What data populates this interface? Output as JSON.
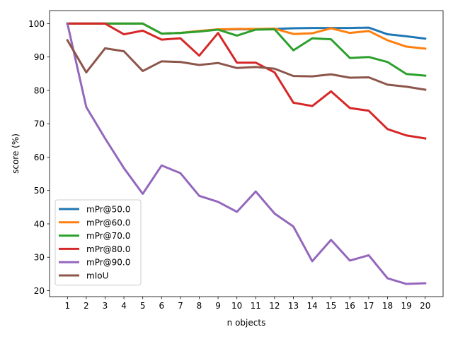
{
  "chart_data": {
    "type": "line",
    "title": "",
    "xlabel": "n objects",
    "ylabel": "score (%)",
    "x": [
      1,
      2,
      3,
      4,
      5,
      6,
      7,
      8,
      9,
      10,
      11,
      12,
      13,
      14,
      15,
      16,
      17,
      18,
      19,
      20
    ],
    "xticks": [
      "1",
      "2",
      "3",
      "4",
      "5",
      "6",
      "7",
      "8",
      "9",
      "10",
      "11",
      "12",
      "13",
      "14",
      "15",
      "16",
      "17",
      "18",
      "19",
      "20"
    ],
    "yticks": [
      "20",
      "30",
      "40",
      "50",
      "60",
      "70",
      "80",
      "90",
      "100"
    ],
    "ylim": [
      18.2,
      103.9
    ],
    "xlim": [
      0.05,
      20.95
    ],
    "grid": false,
    "legend_position": "lower-left",
    "series": [
      {
        "name": "mPr@50.0",
        "color": "#1f77b4",
        "values": [
          100,
          100,
          100,
          100,
          100,
          97.0,
          97.2,
          97.8,
          98.2,
          98.3,
          98.3,
          98.4,
          98.6,
          98.7,
          98.7,
          98.7,
          98.8,
          96.8,
          96.2,
          95.5
        ]
      },
      {
        "name": "mPr@60.0",
        "color": "#ff7f0e",
        "values": [
          100,
          100,
          100,
          100,
          100,
          97.0,
          97.2,
          97.8,
          98.3,
          98.4,
          98.4,
          98.5,
          96.9,
          97.1,
          98.6,
          97.2,
          97.8,
          95.0,
          93.1,
          92.5
        ]
      },
      {
        "name": "mPr@70.0",
        "color": "#2ca02c",
        "values": [
          100,
          100,
          100,
          100,
          100,
          97.0,
          97.2,
          97.6,
          98.2,
          96.4,
          98.2,
          98.3,
          92.0,
          95.6,
          95.3,
          89.7,
          90.0,
          88.5,
          84.9,
          84.4
        ]
      },
      {
        "name": "mPr@80.0",
        "color": "#d62728",
        "values": [
          100,
          100,
          100,
          96.8,
          97.9,
          95.2,
          95.6,
          90.4,
          97.2,
          88.3,
          88.3,
          85.4,
          76.3,
          75.3,
          79.7,
          74.7,
          73.9,
          68.4,
          66.5,
          65.6
        ]
      },
      {
        "name": "mPr@90.0",
        "color": "#9467bd",
        "values": [
          100,
          75.0,
          65.6,
          56.7,
          49.0,
          57.5,
          55.2,
          48.4,
          46.6,
          43.6,
          49.7,
          43.1,
          39.2,
          28.8,
          35.2,
          29.0,
          30.6,
          23.7,
          22.0,
          22.2
        ]
      },
      {
        "name": "mIoU",
        "color": "#8c564b",
        "values": [
          95.0,
          85.4,
          92.6,
          91.7,
          85.8,
          88.7,
          88.5,
          87.6,
          88.2,
          86.7,
          87.0,
          86.5,
          84.3,
          84.2,
          84.8,
          83.8,
          83.9,
          81.7,
          81.1,
          80.2
        ]
      }
    ]
  }
}
